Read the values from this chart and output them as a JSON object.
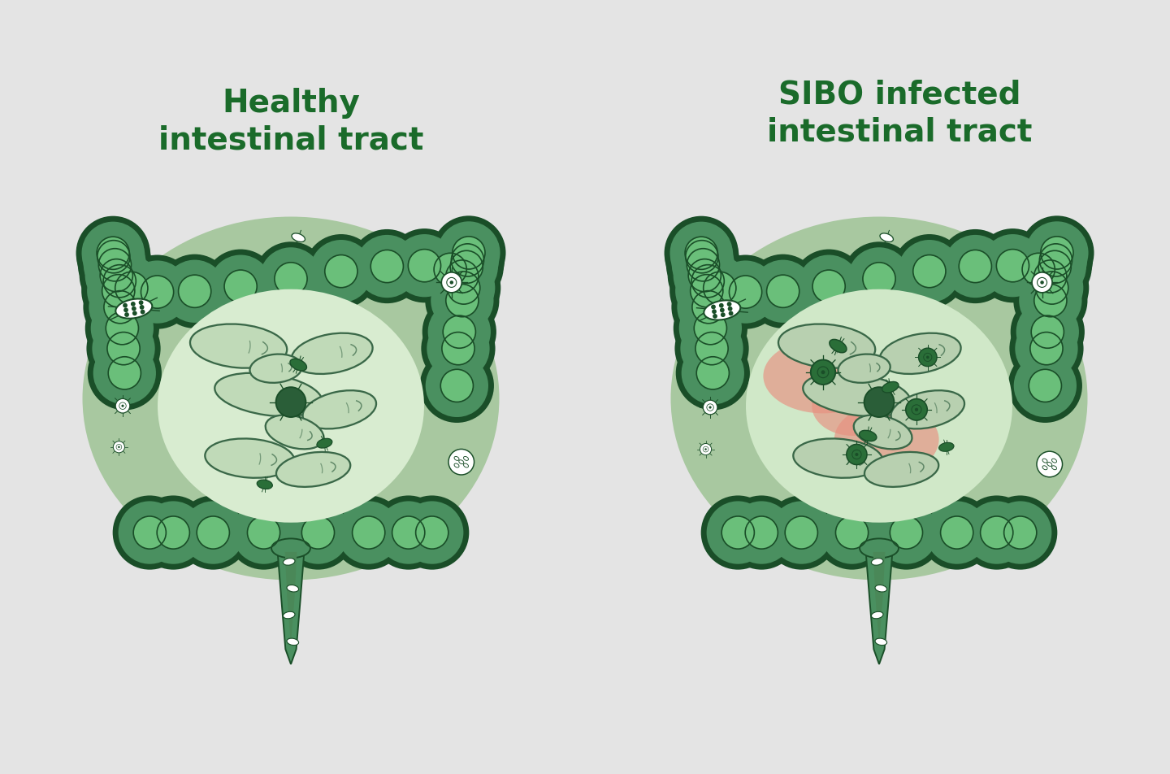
{
  "background_color": "#e4e4e4",
  "title_left": "Healthy\nintestinal tract",
  "title_right": "SIBO infected\nintestinal tract",
  "title_color": "#1a6b2a",
  "title_fontsize": 28,
  "title_fontweight": "bold",
  "dark_green": "#2a6e38",
  "medium_green": "#4a9060",
  "light_green_coil": "#c8dfc0",
  "inner_bg": "#cce0c4",
  "red_inflamed": "#e89080",
  "outline_color": "#1a4e28",
  "colon_outer": "#3a7848",
  "colon_inner": "#5aaa6a",
  "colon_highlight": "#6abf7a",
  "appendix_mid": "#4a8858"
}
